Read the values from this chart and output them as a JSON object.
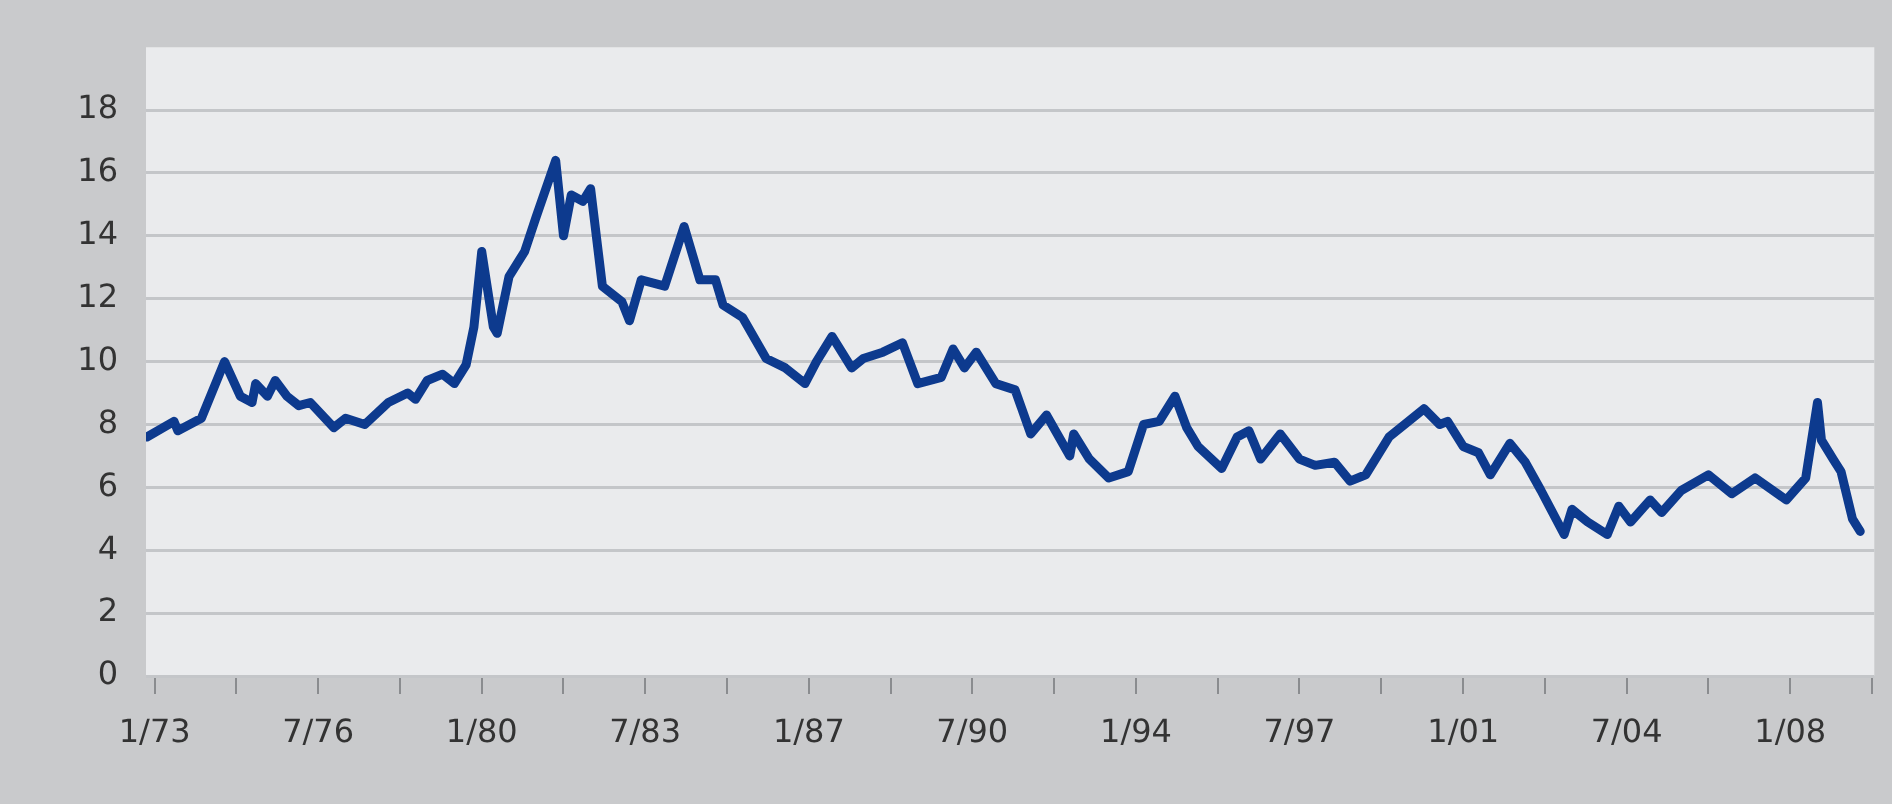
{
  "chart_data": {
    "type": "line",
    "x": [
      "1972-11",
      "1973-06",
      "1973-07",
      "1974-01",
      "1974-07",
      "1974-11",
      "1975-02",
      "1975-03",
      "1975-06",
      "1975-08",
      "1975-11",
      "1976-02",
      "1976-05",
      "1976-11",
      "1977-02",
      "1977-07",
      "1978-01",
      "1978-06",
      "1978-08",
      "1978-11",
      "1979-03",
      "1979-06",
      "1979-09",
      "1979-11",
      "1980-01",
      "1980-04",
      "1980-05",
      "1980-08",
      "1980-12",
      "1981-03",
      "1981-08",
      "1981-10",
      "1981-12",
      "1982-03",
      "1982-05",
      "1982-08",
      "1983-01",
      "1983-03",
      "1983-06",
      "1983-12",
      "1984-05",
      "1984-09",
      "1985-01",
      "1985-03",
      "1985-08",
      "1986-02",
      "1986-07",
      "1986-12",
      "1987-03",
      "1987-07",
      "1987-12",
      "1988-03",
      "1988-08",
      "1989-01",
      "1989-05",
      "1989-11",
      "1990-02",
      "1990-05",
      "1990-08",
      "1991-01",
      "1991-06",
      "1991-10",
      "1992-02",
      "1992-08",
      "1992-09",
      "1993-01",
      "1993-06",
      "1993-11",
      "1994-03",
      "1994-07",
      "1994-11",
      "1995-02",
      "1995-05",
      "1995-11",
      "1996-03",
      "1996-06",
      "1996-09",
      "1997-02",
      "1997-07",
      "1997-11",
      "1998-04",
      "1998-08",
      "1998-12",
      "1999-06",
      "1999-11",
      "2000-03",
      "2000-07",
      "2000-09",
      "2001-01",
      "2001-05",
      "2001-08",
      "2002-01",
      "2002-05",
      "2002-09",
      "2003-03",
      "2003-05",
      "2003-09",
      "2004-02",
      "2004-05",
      "2004-08",
      "2005-01",
      "2005-04",
      "2005-09",
      "2006-04",
      "2006-10",
      "2007-04",
      "2007-12",
      "2008-05",
      "2008-08",
      "2008-09",
      "2008-12",
      "2009-02",
      "2009-05",
      "2009-07"
    ],
    "series": [
      {
        "color": "#0d3a8e",
        "values": [
          7.6,
          8.1,
          7.8,
          8.2,
          10.0,
          8.9,
          8.7,
          9.3,
          8.9,
          9.4,
          8.9,
          8.6,
          8.7,
          7.9,
          8.2,
          8.0,
          8.7,
          9.0,
          8.8,
          9.4,
          9.6,
          9.3,
          9.9,
          11.1,
          13.5,
          11.1,
          10.9,
          12.7,
          13.5,
          14.6,
          16.4,
          14.0,
          15.3,
          15.1,
          15.5,
          12.4,
          11.9,
          11.3,
          12.6,
          12.4,
          14.3,
          12.6,
          12.6,
          11.8,
          11.4,
          10.1,
          9.8,
          9.3,
          10.0,
          10.8,
          9.8,
          10.1,
          10.3,
          10.6,
          9.3,
          9.5,
          10.4,
          9.8,
          10.3,
          9.3,
          9.1,
          7.7,
          8.3,
          7.0,
          7.7,
          6.9,
          6.3,
          6.5,
          8.0,
          8.1,
          8.9,
          7.9,
          7.3,
          6.6,
          7.6,
          7.8,
          6.9,
          7.7,
          6.9,
          6.7,
          6.8,
          6.2,
          6.4,
          7.6,
          8.1,
          8.5,
          8.0,
          8.1,
          7.3,
          7.1,
          6.4,
          7.4,
          6.8,
          5.9,
          4.5,
          5.3,
          4.9,
          4.5,
          5.4,
          4.9,
          5.6,
          5.2,
          5.9,
          6.4,
          5.8,
          6.3,
          5.6,
          6.3,
          8.7,
          7.5,
          6.9,
          6.5,
          5.0,
          4.6
        ]
      }
    ],
    "xlim": [
      "1972-10-25",
      "2009-10-19"
    ],
    "xticks": [
      {
        "value": "1973-01",
        "label": "1/73"
      },
      {
        "value": "1974-10",
        "label": null
      },
      {
        "value": "1976-07",
        "label": "7/76"
      },
      {
        "value": "1978-04",
        "label": null
      },
      {
        "value": "1980-01",
        "label": "1/80"
      },
      {
        "value": "1981-10",
        "label": null
      },
      {
        "value": "1983-07",
        "label": "7/83"
      },
      {
        "value": "1985-04",
        "label": null
      },
      {
        "value": "1987-01",
        "label": "1/87"
      },
      {
        "value": "1988-10",
        "label": null
      },
      {
        "value": "1990-07",
        "label": "7/90"
      },
      {
        "value": "1992-04",
        "label": null
      },
      {
        "value": "1994-01",
        "label": "1/94"
      },
      {
        "value": "1995-10",
        "label": null
      },
      {
        "value": "1997-07",
        "label": "7/97"
      },
      {
        "value": "1999-04",
        "label": null
      },
      {
        "value": "2001-01",
        "label": "1/01"
      },
      {
        "value": "2002-10",
        "label": null
      },
      {
        "value": "2004-07",
        "label": "7/04"
      },
      {
        "value": "2006-04",
        "label": null
      },
      {
        "value": "2008-01",
        "label": "1/08"
      },
      {
        "value": "2009-10",
        "label": null
      }
    ],
    "ylim": [
      0,
      20
    ],
    "yticks": [
      0,
      2,
      4,
      6,
      8,
      10,
      12,
      14,
      16,
      18
    ],
    "grid": "y",
    "legend": false,
    "marker": "none",
    "line_style": "solid"
  }
}
